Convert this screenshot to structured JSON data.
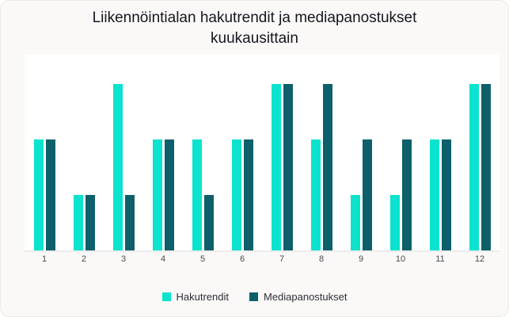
{
  "card": {
    "title": "Liikennöintialan hakutrendit ja mediapanostukset kuukausittain"
  },
  "colors": {
    "card_background": "#FAF9F7",
    "plot_background": "#FFFFFF",
    "axis_line": "#ECECEC",
    "title_text": "#16161F",
    "axis_text": "#4A4A52",
    "hakutrendit": "#0BE3CE",
    "mediapanostukset": "#0D5F6A"
  },
  "legend": {
    "items": [
      {
        "label": "Hakutrendit",
        "color": "#0BE3CE"
      },
      {
        "label": "Mediapanostukset",
        "color": "#0D5F6A"
      }
    ]
  },
  "chart_data": {
    "type": "bar",
    "title": "Liikennöintialan hakutrendit ja mediapanostukset kuukausittain",
    "categories": [
      "1",
      "2",
      "3",
      "4",
      "5",
      "6",
      "7",
      "8",
      "9",
      "10",
      "11",
      "12"
    ],
    "series": [
      {
        "name": "Hakutrendit",
        "color": "#0BE3CE",
        "values": [
          60,
          30,
          90,
          60,
          60,
          60,
          90,
          60,
          30,
          30,
          60,
          90
        ]
      },
      {
        "name": "Mediapanostukset",
        "color": "#0D5F6A",
        "values": [
          60,
          30,
          30,
          60,
          30,
          60,
          90,
          90,
          60,
          60,
          60,
          90
        ]
      }
    ],
    "xlabel": "",
    "ylabel": "",
    "ylim": [
      0,
      106
    ],
    "grid": false,
    "legend_position": "bottom"
  }
}
